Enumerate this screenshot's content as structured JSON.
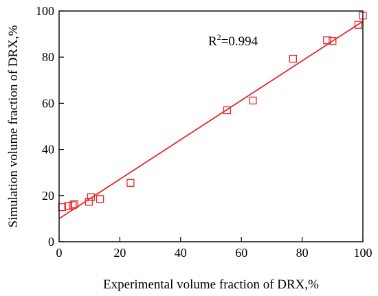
{
  "chart_data": {
    "type": "scatter",
    "title": "",
    "xlabel": "Experimental volume fraction of DRX,%",
    "ylabel": "Simulation volume fraction of DRX,%",
    "xlim": [
      0,
      100
    ],
    "ylim": [
      0,
      100
    ],
    "xticks": [
      0,
      20,
      40,
      60,
      80,
      100
    ],
    "yticks": [
      0,
      20,
      40,
      60,
      80,
      100
    ],
    "annotation": {
      "label": "R",
      "superscript": "2",
      "value_text": "=0.994"
    },
    "series": [
      {
        "marker": "square",
        "color": "#e8262a",
        "points": [
          [
            1.0,
            15.0
          ],
          [
            3.0,
            15.5
          ],
          [
            4.5,
            15.8
          ],
          [
            5.0,
            16.3
          ],
          [
            9.8,
            17.3
          ],
          [
            10.5,
            19.3
          ],
          [
            13.5,
            18.5
          ],
          [
            23.5,
            25.5
          ],
          [
            55.3,
            57.0
          ],
          [
            63.8,
            61.2
          ],
          [
            77.0,
            79.3
          ],
          [
            88.2,
            87.3
          ],
          [
            90.0,
            87.0
          ],
          [
            98.5,
            94.0
          ],
          [
            100.0,
            98.0
          ]
        ]
      }
    ],
    "fit_line": {
      "color": "#e8262a",
      "x": [
        0,
        100
      ],
      "y": [
        10.0,
        95.5
      ]
    }
  }
}
